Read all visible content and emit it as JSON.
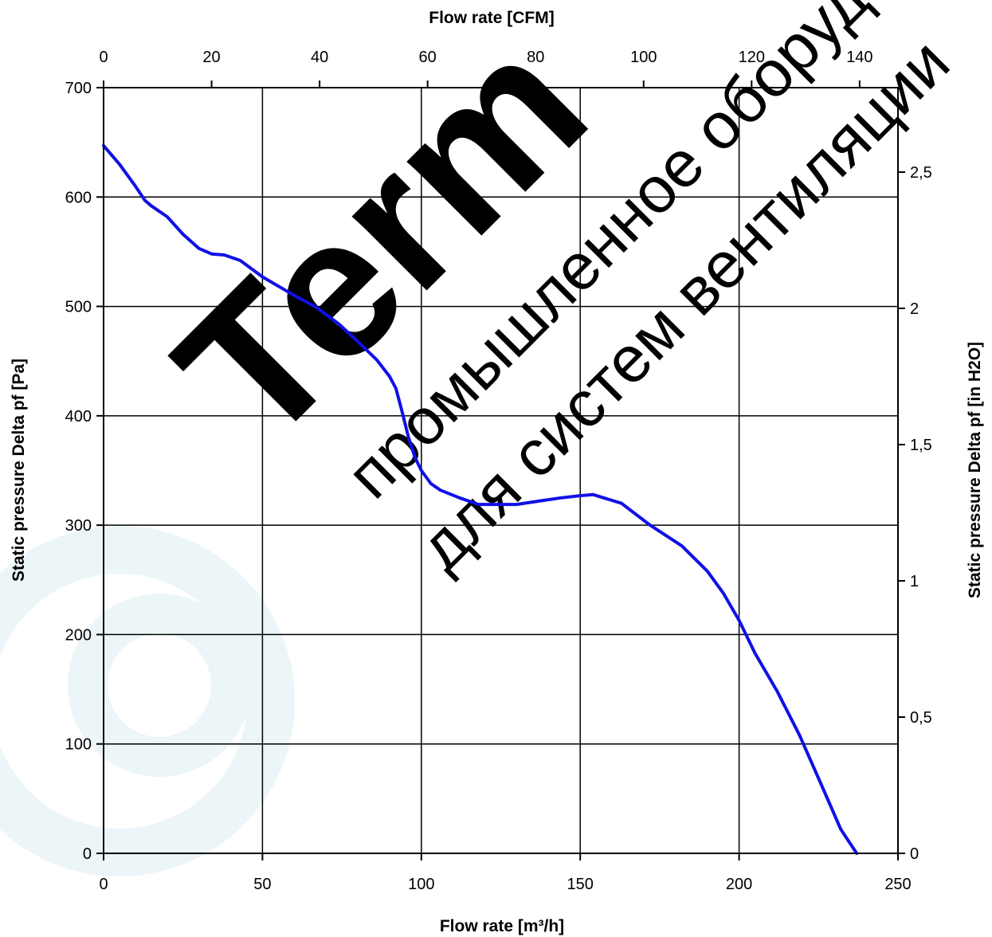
{
  "watermark": {
    "brand": "Term",
    "line1": "промышленное оборудование",
    "line2": "для систем вентиляции",
    "color": "#e3f0f3"
  },
  "chart_data": {
    "type": "line",
    "title": "",
    "xlabel": "Flow rate [m³/h]",
    "xlabel_top": "Flow rate [CFM]",
    "ylabel": "Static pressure Delta pf [Pa]",
    "ylabel_right": "Static pressure Delta pf [in H2O]",
    "xlim": [
      0,
      250
    ],
    "ylim": [
      0,
      700
    ],
    "xlim_top": [
      0,
      147.1
    ],
    "ylim_right": [
      0,
      2.81
    ],
    "x_ticks": [
      "0",
      "50",
      "100",
      "150",
      "200",
      "250"
    ],
    "x_tick_values": [
      0,
      50,
      100,
      150,
      200,
      250
    ],
    "y_ticks": [
      "0",
      "100",
      "200",
      "300",
      "400",
      "500",
      "600",
      "700"
    ],
    "y_tick_values": [
      0,
      100,
      200,
      300,
      400,
      500,
      600,
      700
    ],
    "x_top_ticks": [
      "0",
      "20",
      "40",
      "60",
      "80",
      "100",
      "120",
      "140"
    ],
    "x_top_tick_values": [
      0,
      20,
      40,
      60,
      80,
      100,
      120,
      140
    ],
    "y_right_ticks": [
      "0",
      "0,5",
      "1",
      "1,5",
      "2",
      "2,5"
    ],
    "y_right_tick_values": [
      0,
      0.5,
      1,
      1.5,
      2,
      2.5
    ],
    "grid": true,
    "line_color": "#1010e8",
    "series": [
      {
        "x": [
          0,
          5,
          10,
          13,
          15,
          20,
          25,
          30,
          34,
          38,
          43,
          50,
          60,
          67,
          74,
          80,
          86,
          90,
          92,
          94,
          96,
          98,
          100,
          103,
          106,
          112,
          118,
          124,
          130,
          137,
          144,
          150,
          154,
          163,
          172,
          182,
          190,
          195,
          200,
          205,
          212,
          219,
          226,
          232,
          237
        ],
        "y": [
          647,
          630,
          610,
          597,
          592,
          582,
          566,
          553,
          548,
          547,
          542,
          527,
          510,
          499,
          484,
          468,
          451,
          436,
          425,
          403,
          380,
          362,
          350,
          338,
          332,
          325,
          319,
          319,
          319,
          322,
          325,
          327,
          328,
          320,
          300,
          281,
          258,
          238,
          213,
          183,
          148,
          108,
          62,
          22,
          0
        ]
      }
    ]
  }
}
